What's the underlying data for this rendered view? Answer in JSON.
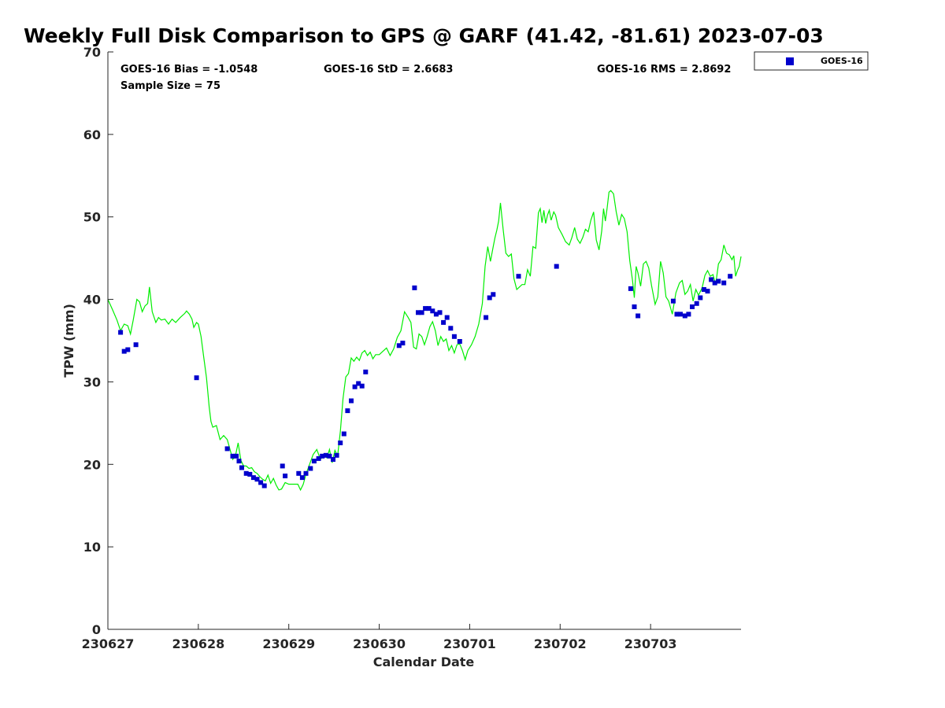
{
  "chart_data": {
    "type": "scatter",
    "title": "Weekly Full Disk Comparison to GPS @ GARF (41.42, -81.61) 2023-07-03",
    "xlabel": "Calendar Date",
    "ylabel": "TPW (mm)",
    "xlim": [
      0,
      7.0
    ],
    "ylim": [
      0,
      70
    ],
    "yticks": [
      0,
      10,
      20,
      30,
      40,
      50,
      60,
      70
    ],
    "xticks": [
      {
        "v": 0,
        "label": "230627"
      },
      {
        "v": 1,
        "label": "230628"
      },
      {
        "v": 2,
        "label": "230629"
      },
      {
        "v": 3,
        "label": "230630"
      },
      {
        "v": 4,
        "label": "230701"
      },
      {
        "v": 5,
        "label": "230702"
      },
      {
        "v": 6,
        "label": "230703"
      }
    ],
    "stats": {
      "bias": "GOES-16 Bias = -1.0548",
      "std": "GOES-16 StD = 2.6683",
      "rms": "GOES-16 RMS = 2.8692",
      "sample": "Sample Size = 75"
    },
    "legend": {
      "placement": "outside-top-right",
      "entries": [
        "GOES-16"
      ]
    },
    "colors": {
      "goes": "#0000cc",
      "gps": "#00ee00",
      "axis": "#262626"
    },
    "series": [
      {
        "name": "GOES-16",
        "marker": "square",
        "color": "#0000cc",
        "points": [
          [
            0.14,
            36.0
          ],
          [
            0.18,
            33.7
          ],
          [
            0.22,
            33.9
          ],
          [
            0.31,
            34.5
          ],
          [
            0.98,
            30.5
          ],
          [
            1.32,
            21.9
          ],
          [
            1.38,
            21.0
          ],
          [
            1.42,
            21.0
          ],
          [
            1.45,
            20.4
          ],
          [
            1.48,
            19.6
          ],
          [
            1.53,
            18.9
          ],
          [
            1.57,
            18.8
          ],
          [
            1.61,
            18.4
          ],
          [
            1.65,
            18.2
          ],
          [
            1.69,
            17.8
          ],
          [
            1.73,
            17.4
          ],
          [
            1.93,
            19.8
          ],
          [
            1.96,
            18.6
          ],
          [
            2.11,
            18.9
          ],
          [
            2.15,
            18.4
          ],
          [
            2.19,
            18.9
          ],
          [
            2.24,
            19.5
          ],
          [
            2.28,
            20.4
          ],
          [
            2.33,
            20.7
          ],
          [
            2.37,
            21.0
          ],
          [
            2.41,
            21.1
          ],
          [
            2.45,
            21.0
          ],
          [
            2.49,
            20.6
          ],
          [
            2.53,
            21.1
          ],
          [
            2.57,
            22.6
          ],
          [
            2.61,
            23.7
          ],
          [
            2.65,
            26.5
          ],
          [
            2.69,
            27.7
          ],
          [
            2.73,
            29.4
          ],
          [
            2.77,
            29.8
          ],
          [
            2.81,
            29.5
          ],
          [
            2.85,
            31.2
          ],
          [
            3.22,
            34.4
          ],
          [
            3.26,
            34.7
          ],
          [
            3.39,
            41.4
          ],
          [
            3.43,
            38.4
          ],
          [
            3.47,
            38.4
          ],
          [
            3.51,
            38.9
          ],
          [
            3.55,
            38.9
          ],
          [
            3.59,
            38.6
          ],
          [
            3.63,
            38.2
          ],
          [
            3.67,
            38.4
          ],
          [
            3.71,
            37.2
          ],
          [
            3.75,
            37.8
          ],
          [
            3.79,
            36.5
          ],
          [
            3.83,
            35.5
          ],
          [
            3.89,
            34.9
          ],
          [
            4.18,
            37.8
          ],
          [
            4.22,
            40.2
          ],
          [
            4.26,
            40.6
          ],
          [
            4.54,
            42.8
          ],
          [
            4.96,
            44.0
          ],
          [
            5.78,
            41.3
          ],
          [
            5.82,
            39.1
          ],
          [
            5.86,
            38.0
          ],
          [
            6.25,
            39.8
          ],
          [
            6.29,
            38.2
          ],
          [
            6.33,
            38.2
          ],
          [
            6.38,
            38.0
          ],
          [
            6.42,
            38.2
          ],
          [
            6.46,
            39.1
          ],
          [
            6.51,
            39.5
          ],
          [
            6.55,
            40.2
          ],
          [
            6.59,
            41.2
          ],
          [
            6.63,
            41.0
          ],
          [
            6.67,
            42.4
          ],
          [
            6.71,
            42.0
          ],
          [
            6.75,
            42.2
          ],
          [
            6.81,
            42.0
          ],
          [
            6.88,
            42.8
          ]
        ]
      },
      {
        "name": "GPS",
        "marker": "line",
        "color": "#00ee00",
        "points": [
          [
            0.0,
            40.0
          ],
          [
            0.05,
            38.8
          ],
          [
            0.1,
            37.5
          ],
          [
            0.14,
            36.2
          ],
          [
            0.18,
            37.0
          ],
          [
            0.22,
            36.8
          ],
          [
            0.25,
            35.8
          ],
          [
            0.28,
            37.5
          ],
          [
            0.32,
            40.0
          ],
          [
            0.35,
            39.7
          ],
          [
            0.38,
            38.5
          ],
          [
            0.41,
            39.2
          ],
          [
            0.44,
            39.5
          ],
          [
            0.46,
            41.5
          ],
          [
            0.49,
            38.5
          ],
          [
            0.53,
            37.2
          ],
          [
            0.56,
            37.8
          ],
          [
            0.59,
            37.5
          ],
          [
            0.63,
            37.6
          ],
          [
            0.67,
            37.0
          ],
          [
            0.71,
            37.6
          ],
          [
            0.75,
            37.2
          ],
          [
            0.8,
            37.8
          ],
          [
            0.85,
            38.3
          ],
          [
            0.87,
            38.6
          ],
          [
            0.9,
            38.2
          ],
          [
            0.93,
            37.6
          ],
          [
            0.95,
            36.6
          ],
          [
            0.98,
            37.2
          ],
          [
            1.0,
            37.0
          ],
          [
            1.03,
            35.5
          ],
          [
            1.06,
            33.0
          ],
          [
            1.09,
            30.5
          ],
          [
            1.12,
            27.0
          ],
          [
            1.14,
            25.2
          ],
          [
            1.16,
            24.5
          ],
          [
            1.2,
            24.7
          ],
          [
            1.24,
            23.0
          ],
          [
            1.28,
            23.5
          ],
          [
            1.32,
            23.0
          ],
          [
            1.35,
            21.8
          ],
          [
            1.38,
            20.6
          ],
          [
            1.41,
            21.0
          ],
          [
            1.44,
            22.6
          ],
          [
            1.47,
            20.5
          ],
          [
            1.5,
            19.8
          ],
          [
            1.53,
            19.8
          ],
          [
            1.56,
            19.5
          ],
          [
            1.59,
            19.6
          ],
          [
            1.62,
            19.1
          ],
          [
            1.65,
            18.9
          ],
          [
            1.68,
            18.5
          ],
          [
            1.71,
            18.2
          ],
          [
            1.74,
            18.0
          ],
          [
            1.77,
            18.7
          ],
          [
            1.8,
            17.7
          ],
          [
            1.83,
            18.3
          ],
          [
            1.86,
            17.5
          ],
          [
            1.89,
            16.9
          ],
          [
            1.92,
            17.0
          ],
          [
            1.96,
            17.8
          ],
          [
            2.0,
            17.6
          ],
          [
            2.05,
            17.6
          ],
          [
            2.1,
            17.6
          ],
          [
            2.13,
            16.9
          ],
          [
            2.16,
            17.6
          ],
          [
            2.19,
            18.8
          ],
          [
            2.23,
            20.0
          ],
          [
            2.27,
            21.2
          ],
          [
            2.31,
            21.8
          ],
          [
            2.35,
            20.6
          ],
          [
            2.39,
            21.2
          ],
          [
            2.42,
            20.8
          ],
          [
            2.45,
            21.8
          ],
          [
            2.48,
            20.2
          ],
          [
            2.51,
            21.7
          ],
          [
            2.54,
            21.0
          ],
          [
            2.57,
            24.0
          ],
          [
            2.6,
            28.0
          ],
          [
            2.63,
            30.6
          ],
          [
            2.66,
            31.0
          ],
          [
            2.69,
            32.9
          ],
          [
            2.72,
            32.5
          ],
          [
            2.75,
            33.0
          ],
          [
            2.78,
            32.6
          ],
          [
            2.81,
            33.5
          ],
          [
            2.84,
            33.8
          ],
          [
            2.87,
            33.2
          ],
          [
            2.9,
            33.6
          ],
          [
            2.93,
            32.8
          ],
          [
            2.96,
            33.3
          ],
          [
            3.0,
            33.3
          ],
          [
            3.04,
            33.7
          ],
          [
            3.08,
            34.1
          ],
          [
            3.12,
            33.2
          ],
          [
            3.16,
            34.0
          ],
          [
            3.2,
            35.4
          ],
          [
            3.24,
            36.2
          ],
          [
            3.28,
            38.5
          ],
          [
            3.32,
            37.8
          ],
          [
            3.35,
            37.2
          ],
          [
            3.38,
            34.2
          ],
          [
            3.41,
            34.0
          ],
          [
            3.44,
            35.8
          ],
          [
            3.47,
            35.5
          ],
          [
            3.5,
            34.5
          ],
          [
            3.53,
            35.5
          ],
          [
            3.56,
            36.7
          ],
          [
            3.59,
            37.3
          ],
          [
            3.62,
            36.2
          ],
          [
            3.65,
            34.4
          ],
          [
            3.68,
            35.5
          ],
          [
            3.71,
            34.9
          ],
          [
            3.74,
            35.2
          ],
          [
            3.77,
            33.8
          ],
          [
            3.8,
            34.4
          ],
          [
            3.83,
            33.5
          ],
          [
            3.86,
            34.5
          ],
          [
            3.89,
            34.6
          ],
          [
            3.92,
            33.8
          ],
          [
            3.95,
            32.7
          ],
          [
            3.98,
            33.8
          ],
          [
            4.02,
            34.5
          ],
          [
            4.06,
            35.5
          ],
          [
            4.1,
            37.0
          ],
          [
            4.14,
            39.5
          ],
          [
            4.17,
            44.0
          ],
          [
            4.2,
            46.4
          ],
          [
            4.23,
            44.6
          ],
          [
            4.26,
            46.4
          ],
          [
            4.28,
            47.5
          ],
          [
            4.3,
            48.4
          ],
          [
            4.32,
            49.5
          ],
          [
            4.34,
            51.7
          ],
          [
            4.37,
            48.5
          ],
          [
            4.4,
            45.6
          ],
          [
            4.43,
            45.2
          ],
          [
            4.46,
            45.5
          ],
          [
            4.49,
            42.5
          ],
          [
            4.52,
            41.2
          ],
          [
            4.55,
            41.5
          ],
          [
            4.58,
            41.8
          ],
          [
            4.61,
            41.8
          ],
          [
            4.64,
            43.6
          ],
          [
            4.67,
            42.8
          ],
          [
            4.7,
            46.4
          ],
          [
            4.73,
            46.2
          ],
          [
            4.76,
            50.5
          ],
          [
            4.78,
            51.0
          ],
          [
            4.8,
            49.3
          ],
          [
            4.82,
            50.8
          ],
          [
            4.84,
            49.2
          ],
          [
            4.86,
            50.2
          ],
          [
            4.88,
            50.8
          ],
          [
            4.9,
            49.6
          ],
          [
            4.93,
            50.6
          ],
          [
            4.95,
            50.2
          ],
          [
            4.98,
            48.7
          ],
          [
            5.02,
            47.9
          ],
          [
            5.06,
            47.0
          ],
          [
            5.1,
            46.6
          ],
          [
            5.13,
            47.5
          ],
          [
            5.16,
            48.7
          ],
          [
            5.19,
            47.3
          ],
          [
            5.22,
            46.8
          ],
          [
            5.25,
            47.5
          ],
          [
            5.28,
            48.5
          ],
          [
            5.31,
            48.2
          ],
          [
            5.34,
            49.6
          ],
          [
            5.37,
            50.6
          ],
          [
            5.4,
            47.2
          ],
          [
            5.43,
            46.0
          ],
          [
            5.46,
            48.3
          ],
          [
            5.48,
            51.0
          ],
          [
            5.5,
            49.5
          ],
          [
            5.52,
            51.1
          ],
          [
            5.54,
            53.0
          ],
          [
            5.56,
            53.2
          ],
          [
            5.59,
            52.8
          ],
          [
            5.62,
            50.6
          ],
          [
            5.65,
            49.0
          ],
          [
            5.68,
            50.3
          ],
          [
            5.71,
            49.8
          ],
          [
            5.74,
            48.2
          ],
          [
            5.77,
            44.7
          ],
          [
            5.8,
            42.3
          ],
          [
            5.82,
            40.2
          ],
          [
            5.84,
            44.0
          ],
          [
            5.86,
            43.2
          ],
          [
            5.89,
            41.6
          ],
          [
            5.92,
            44.3
          ],
          [
            5.95,
            44.6
          ],
          [
            5.98,
            43.8
          ],
          [
            6.01,
            41.7
          ],
          [
            6.05,
            39.4
          ],
          [
            6.08,
            40.3
          ],
          [
            6.11,
            44.6
          ],
          [
            6.14,
            43.2
          ],
          [
            6.17,
            40.3
          ],
          [
            6.2,
            39.8
          ],
          [
            6.24,
            38.2
          ],
          [
            6.28,
            40.8
          ],
          [
            6.32,
            42.0
          ],
          [
            6.35,
            42.3
          ],
          [
            6.38,
            40.6
          ],
          [
            6.41,
            41.0
          ],
          [
            6.44,
            41.8
          ],
          [
            6.47,
            39.8
          ],
          [
            6.5,
            41.2
          ],
          [
            6.53,
            40.5
          ],
          [
            6.57,
            41.4
          ],
          [
            6.6,
            42.9
          ],
          [
            6.63,
            43.5
          ],
          [
            6.66,
            42.8
          ],
          [
            6.69,
            43.0
          ],
          [
            6.72,
            41.8
          ],
          [
            6.75,
            44.3
          ],
          [
            6.78,
            44.8
          ],
          [
            6.81,
            46.6
          ],
          [
            6.84,
            45.6
          ],
          [
            6.87,
            45.4
          ],
          [
            6.9,
            44.8
          ],
          [
            6.92,
            45.3
          ],
          [
            6.94,
            42.8
          ],
          [
            6.96,
            43.5
          ],
          [
            6.98,
            44.0
          ],
          [
            7.0,
            45.2
          ]
        ]
      }
    ]
  }
}
